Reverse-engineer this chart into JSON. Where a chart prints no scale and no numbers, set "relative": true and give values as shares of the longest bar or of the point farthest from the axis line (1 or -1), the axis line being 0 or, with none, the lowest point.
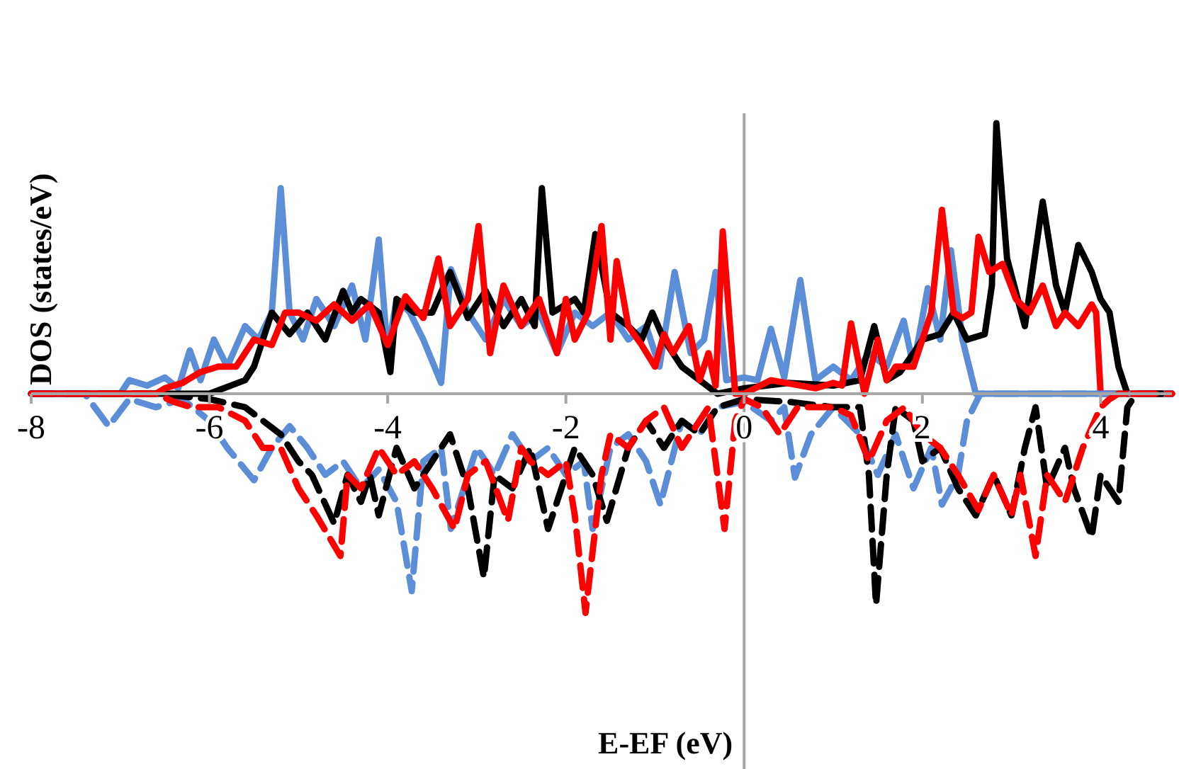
{
  "chart_data": {
    "type": "line",
    "xlabel": "E-EF (eV)",
    "ylabel": "DOS (states/eV)",
    "relative": true,
    "xlim": [
      -8,
      4.8
    ],
    "xticks": [
      -8,
      -6,
      -4,
      -2,
      0,
      2,
      4
    ],
    "marker": "none",
    "series": [
      {
        "color": "#5b8ed6",
        "line_style": "solid",
        "x": [
          -8,
          -7.0,
          -6.9,
          -6.7,
          -6.5,
          -6.35,
          -6.22,
          -6.1,
          -5.95,
          -5.8,
          -5.6,
          -5.45,
          -5.3,
          -5.2,
          -5.1,
          -4.95,
          -4.8,
          -4.6,
          -4.4,
          -4.25,
          -4.1,
          -4.0,
          -3.9,
          -3.75,
          -3.6,
          -3.4,
          -3.29,
          -3.1,
          -2.9,
          -2.7,
          -2.5,
          -2.3,
          -2.1,
          -1.9,
          -1.7,
          -1.5,
          -1.3,
          -1.1,
          -0.95,
          -0.78,
          -0.6,
          -0.45,
          -0.32,
          -0.2,
          0,
          0.15,
          0.3,
          0.45,
          0.63,
          0.8,
          1.0,
          1.2,
          1.4,
          1.6,
          1.79,
          1.9,
          2.06,
          2.2,
          2.32,
          2.45,
          2.6,
          4.8
        ],
        "values": [
          0,
          0,
          0.05,
          0.03,
          0.06,
          0.02,
          0.16,
          0.05,
          0.2,
          0.1,
          0.25,
          0.2,
          0.3,
          0.76,
          0.3,
          0.2,
          0.35,
          0.25,
          0.4,
          0.2,
          0.57,
          0.15,
          0.35,
          0.3,
          0.2,
          0.04,
          0.46,
          0.3,
          0.2,
          0.35,
          0.25,
          0.3,
          0.15,
          0.3,
          0.25,
          0.3,
          0.2,
          0.25,
          0.1,
          0.45,
          0.15,
          0.2,
          0.45,
          0.05,
          0.06,
          0.05,
          0.24,
          0.06,
          0.42,
          0.05,
          0.1,
          0.05,
          0.15,
          0.1,
          0.27,
          0.1,
          0.39,
          0.2,
          0.53,
          0.2,
          0,
          0
        ]
      },
      {
        "color": "#000000",
        "line_style": "solid",
        "x": [
          -8,
          -6.3,
          -6.0,
          -5.6,
          -5.5,
          -5.3,
          -5.1,
          -4.9,
          -4.7,
          -4.5,
          -4.4,
          -4.3,
          -4.1,
          -3.97,
          -3.9,
          -3.7,
          -3.5,
          -3.3,
          -3.1,
          -2.9,
          -2.7,
          -2.5,
          -2.35,
          -2.27,
          -2.15,
          -1.9,
          -1.8,
          -1.67,
          -1.5,
          -1.3,
          -1.15,
          -1.03,
          -0.9,
          -0.7,
          -0.5,
          -0.3,
          0,
          0.5,
          1.0,
          1.3,
          1.46,
          1.6,
          1.75,
          1.9,
          2.0,
          2.2,
          2.35,
          2.5,
          2.7,
          2.78,
          2.83,
          2.95,
          3.15,
          3.35,
          3.5,
          3.6,
          3.75,
          3.9,
          4.0,
          4.1,
          4.2,
          4.3,
          4.8
        ],
        "values": [
          0,
          0,
          0,
          0.05,
          0.1,
          0.3,
          0.22,
          0.3,
          0.2,
          0.38,
          0.3,
          0.35,
          0.3,
          0.08,
          0.35,
          0.3,
          0.3,
          0.45,
          0.28,
          0.38,
          0.25,
          0.35,
          0.25,
          0.76,
          0.3,
          0.35,
          0.3,
          0.59,
          0.3,
          0.25,
          0.2,
          0.3,
          0.2,
          0.1,
          0.05,
          0,
          0.02,
          0.04,
          0.03,
          0.05,
          0.25,
          0.05,
          0.08,
          0.15,
          0.2,
          0.22,
          0.3,
          0.2,
          0.22,
          0.4,
          1.0,
          0.5,
          0.25,
          0.71,
          0.4,
          0.3,
          0.55,
          0.45,
          0.35,
          0.3,
          0.1,
          0,
          0
        ]
      },
      {
        "color": "#ff0000",
        "line_style": "solid",
        "x": [
          -8,
          -6.6,
          -6.5,
          -6.3,
          -6.1,
          -5.9,
          -5.7,
          -5.5,
          -5.3,
          -5.15,
          -5.0,
          -4.8,
          -4.6,
          -4.4,
          -4.2,
          -4.0,
          -3.8,
          -3.6,
          -3.43,
          -3.3,
          -3.1,
          -2.98,
          -2.85,
          -2.7,
          -2.5,
          -2.3,
          -2.1,
          -2.0,
          -1.9,
          -1.75,
          -1.6,
          -1.5,
          -1.43,
          -1.3,
          -1.15,
          -1.0,
          -0.9,
          -0.8,
          -0.62,
          -0.5,
          -0.4,
          -0.32,
          -0.24,
          -0.1,
          0,
          0.3,
          0.8,
          1.0,
          1.1,
          1.2,
          1.35,
          1.5,
          1.6,
          1.7,
          1.9,
          2.1,
          2.22,
          2.35,
          2.45,
          2.55,
          2.63,
          2.75,
          2.9,
          3.05,
          3.2,
          3.35,
          3.5,
          3.6,
          3.75,
          3.9,
          3.95,
          4.0,
          4.8
        ],
        "values": [
          0,
          0,
          0.02,
          0.04,
          0.08,
          0.1,
          0.1,
          0.2,
          0.18,
          0.3,
          0.3,
          0.27,
          0.33,
          0.27,
          0.33,
          0.18,
          0.36,
          0.28,
          0.5,
          0.25,
          0.35,
          0.62,
          0.15,
          0.4,
          0.25,
          0.35,
          0.15,
          0.35,
          0.2,
          0.3,
          0.62,
          0.2,
          0.49,
          0.25,
          0.18,
          0.1,
          0.22,
          0.15,
          0.25,
          0.05,
          0.15,
          0.03,
          0.6,
          0,
          0,
          0.05,
          0.02,
          0.04,
          0.03,
          0.26,
          0,
          0.2,
          0.05,
          0.1,
          0.1,
          0.3,
          0.68,
          0.3,
          0.28,
          0.3,
          0.58,
          0.45,
          0.48,
          0.35,
          0.3,
          0.4,
          0.25,
          0.3,
          0.25,
          0.33,
          0.3,
          0,
          0
        ]
      },
      {
        "color": "#5b8ed6",
        "line_style": "dashed",
        "x": [
          -8,
          -7.4,
          -7.13,
          -6.9,
          -6.6,
          -6.3,
          -6.0,
          -5.8,
          -5.5,
          -5.3,
          -5.1,
          -4.9,
          -4.7,
          -4.5,
          -4.3,
          -4.1,
          -3.9,
          -3.73,
          -3.6,
          -3.4,
          -3.29,
          -3.0,
          -2.8,
          -2.6,
          -2.4,
          -2.2,
          -2.0,
          -1.8,
          -1.7,
          -1.5,
          -1.3,
          -1.1,
          -0.94,
          -0.7,
          -0.5,
          -0.3,
          0,
          0.3,
          0.45,
          0.57,
          0.75,
          1.0,
          1.3,
          1.5,
          1.7,
          1.9,
          2.1,
          2.22,
          2.4,
          2.5,
          2.65,
          4.8
        ],
        "values": [
          0,
          0,
          -0.12,
          -0.02,
          -0.05,
          -0.02,
          -0.1,
          -0.2,
          -0.32,
          -0.2,
          -0.12,
          -0.2,
          -0.3,
          -0.25,
          -0.35,
          -0.28,
          -0.4,
          -0.73,
          -0.25,
          -0.2,
          -0.5,
          -0.2,
          -0.3,
          -0.15,
          -0.25,
          -0.2,
          -0.3,
          -0.25,
          -0.5,
          -0.2,
          -0.15,
          -0.25,
          -0.41,
          -0.1,
          -0.15,
          -0.05,
          -0.03,
          -0.1,
          -0.05,
          -0.31,
          -0.15,
          -0.05,
          -0.15,
          -0.3,
          -0.15,
          -0.35,
          -0.2,
          -0.41,
          -0.3,
          -0.1,
          0,
          0
        ]
      },
      {
        "color": "#000000",
        "line_style": "dashed",
        "x": [
          -8,
          -6.6,
          -6.0,
          -5.6,
          -5.2,
          -5.0,
          -4.85,
          -4.6,
          -4.45,
          -4.3,
          -4.2,
          -4.1,
          -3.9,
          -3.7,
          -3.5,
          -3.3,
          -3.1,
          -2.92,
          -2.8,
          -2.6,
          -2.4,
          -2.3,
          -2.2,
          -1.9,
          -1.7,
          -1.54,
          -1.3,
          -1.1,
          -0.9,
          -0.7,
          -0.5,
          -0.3,
          0,
          0.5,
          1.0,
          1.3,
          1.4,
          1.48,
          1.6,
          1.7,
          1.9,
          2.0,
          2.2,
          2.4,
          2.6,
          2.8,
          3.0,
          3.15,
          3.27,
          3.4,
          3.6,
          3.7,
          3.9,
          4.0,
          4.2,
          4.3,
          4.4,
          4.8
        ],
        "values": [
          0,
          0,
          -0.02,
          -0.05,
          -0.15,
          -0.25,
          -0.3,
          -0.48,
          -0.3,
          -0.4,
          -0.3,
          -0.45,
          -0.2,
          -0.35,
          -0.25,
          -0.15,
          -0.35,
          -0.68,
          -0.3,
          -0.35,
          -0.2,
          -0.35,
          -0.5,
          -0.2,
          -0.3,
          -0.47,
          -0.2,
          -0.1,
          -0.2,
          -0.1,
          -0.15,
          -0.05,
          -0.02,
          -0.03,
          -0.05,
          -0.05,
          -0.3,
          -0.78,
          -0.3,
          -0.05,
          -0.1,
          -0.25,
          -0.2,
          -0.35,
          -0.45,
          -0.3,
          -0.45,
          -0.2,
          -0.05,
          -0.35,
          -0.2,
          -0.35,
          -0.53,
          -0.3,
          -0.4,
          -0.05,
          0,
          0
        ]
      },
      {
        "color": "#ff0000",
        "line_style": "dashed",
        "x": [
          -8,
          -6.6,
          -6.4,
          -6.2,
          -5.9,
          -5.6,
          -5.4,
          -5.2,
          -5.0,
          -4.8,
          -4.53,
          -4.45,
          -4.3,
          -4.1,
          -3.9,
          -3.7,
          -3.5,
          -3.25,
          -3.1,
          -2.9,
          -2.65,
          -2.5,
          -2.4,
          -2.2,
          -2.0,
          -1.9,
          -1.78,
          -1.6,
          -1.5,
          -1.3,
          -1.1,
          -0.9,
          -0.7,
          -0.5,
          -0.4,
          -0.22,
          -0.1,
          0,
          0.2,
          0.4,
          0.6,
          0.8,
          1.0,
          1.2,
          1.4,
          1.6,
          1.8,
          2.0,
          2.2,
          2.4,
          2.63,
          2.8,
          3.0,
          3.1,
          3.27,
          3.4,
          3.6,
          3.8,
          4.0,
          4.1,
          4.2,
          4.8
        ],
        "values": [
          0,
          0,
          -0.03,
          -0.05,
          -0.05,
          -0.1,
          -0.2,
          -0.2,
          -0.35,
          -0.45,
          -0.6,
          -0.3,
          -0.35,
          -0.2,
          -0.3,
          -0.25,
          -0.35,
          -0.5,
          -0.3,
          -0.25,
          -0.47,
          -0.2,
          -0.25,
          -0.3,
          -0.25,
          -0.45,
          -0.81,
          -0.3,
          -0.15,
          -0.2,
          -0.1,
          -0.05,
          -0.2,
          -0.1,
          -0.05,
          -0.5,
          -0.1,
          -0.02,
          -0.05,
          -0.15,
          -0.05,
          -0.05,
          -0.05,
          -0.08,
          -0.25,
          -0.1,
          -0.05,
          -0.15,
          -0.2,
          -0.3,
          -0.43,
          -0.3,
          -0.45,
          -0.3,
          -0.6,
          -0.3,
          -0.4,
          -0.2,
          -0.05,
          -0.02,
          0,
          0
        ]
      }
    ]
  }
}
